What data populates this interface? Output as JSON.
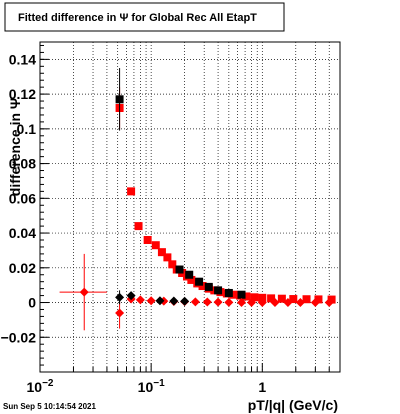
{
  "chart_data": {
    "type": "scatter",
    "title": "Fitted difference in  Ψ  for Global Rec All EtapT",
    "xlabel": "pT/|q| (GeV/c)",
    "ylabel": "difference in Ψ",
    "x_scale": "log",
    "xlim": [
      0.01,
      5
    ],
    "ylim": [
      -0.04,
      0.15
    ],
    "grid": true,
    "x_tick_labels": [
      {
        "value": 0.01,
        "base": "10",
        "exp": "−2"
      },
      {
        "value": 0.1,
        "base": "10",
        "exp": "−1"
      },
      {
        "value": 1,
        "base": "1",
        "exp": ""
      }
    ],
    "y_tick_labels": [
      "−0.02",
      "0",
      "0.02",
      "0.04",
      "0.06",
      "0.08",
      "0.1",
      "0.12",
      "0.14"
    ],
    "y_tick_values": [
      -0.02,
      0,
      0.02,
      0.04,
      0.06,
      0.08,
      0.1,
      0.12,
      0.14
    ],
    "series": [
      {
        "color": "#ff0000",
        "marker": "square",
        "points": [
          {
            "x": 0.052,
            "y": 0.112,
            "ey": 0.012
          },
          {
            "x": 0.066,
            "y": 0.064
          },
          {
            "x": 0.077,
            "y": 0.044
          },
          {
            "x": 0.093,
            "y": 0.036
          },
          {
            "x": 0.11,
            "y": 0.033
          },
          {
            "x": 0.125,
            "y": 0.029
          },
          {
            "x": 0.14,
            "y": 0.026
          },
          {
            "x": 0.155,
            "y": 0.022
          },
          {
            "x": 0.17,
            "y": 0.019
          },
          {
            "x": 0.19,
            "y": 0.017
          },
          {
            "x": 0.21,
            "y": 0.015
          },
          {
            "x": 0.23,
            "y": 0.013
          },
          {
            "x": 0.26,
            "y": 0.011
          },
          {
            "x": 0.29,
            "y": 0.0095
          },
          {
            "x": 0.33,
            "y": 0.008
          },
          {
            "x": 0.37,
            "y": 0.007
          },
          {
            "x": 0.42,
            "y": 0.006
          },
          {
            "x": 0.48,
            "y": 0.0052
          },
          {
            "x": 0.55,
            "y": 0.0045
          },
          {
            "x": 0.63,
            "y": 0.004
          },
          {
            "x": 0.72,
            "y": 0.0035
          },
          {
            "x": 0.85,
            "y": 0.003
          },
          {
            "x": 1.0,
            "y": 0.0027
          },
          {
            "x": 1.2,
            "y": 0.0024
          },
          {
            "x": 1.5,
            "y": 0.0022
          },
          {
            "x": 1.9,
            "y": 0.002
          },
          {
            "x": 2.5,
            "y": 0.0019
          },
          {
            "x": 3.2,
            "y": 0.0018
          },
          {
            "x": 4.2,
            "y": 0.0017
          }
        ]
      },
      {
        "color": "#000000",
        "marker": "square",
        "points": [
          {
            "x": 0.052,
            "y": 0.117,
            "ey": 0.018
          },
          {
            "x": 0.18,
            "y": 0.019
          },
          {
            "x": 0.22,
            "y": 0.016
          },
          {
            "x": 0.27,
            "y": 0.012
          },
          {
            "x": 0.33,
            "y": 0.009
          },
          {
            "x": 0.4,
            "y": 0.007
          },
          {
            "x": 0.5,
            "y": 0.0055
          },
          {
            "x": 0.65,
            "y": 0.0045
          }
        ]
      },
      {
        "color": "#ff0000",
        "marker": "diamond",
        "points": [
          {
            "x": 0.025,
            "y": 0.006,
            "ey": 0.022,
            "ex_lo": 0.015,
            "ex_hi": 0.04
          },
          {
            "x": 0.052,
            "y": -0.006,
            "ey": 0.009
          },
          {
            "x": 0.066,
            "y": 0.002
          },
          {
            "x": 0.08,
            "y": 0.0015
          },
          {
            "x": 0.1,
            "y": 0.001
          },
          {
            "x": 0.13,
            "y": 0.0008
          },
          {
            "x": 0.16,
            "y": 0.0006
          },
          {
            "x": 0.2,
            "y": 0.0005
          },
          {
            "x": 0.25,
            "y": 0.0004
          },
          {
            "x": 0.32,
            "y": 0.0003
          },
          {
            "x": 0.4,
            "y": 0.0002
          },
          {
            "x": 0.5,
            "y": 0.0001
          },
          {
            "x": 0.65,
            "y": 0.0
          },
          {
            "x": 0.8,
            "y": 0.0
          },
          {
            "x": 1.0,
            "y": 0.0
          },
          {
            "x": 1.3,
            "y": 0.0
          },
          {
            "x": 1.7,
            "y": 0.0
          },
          {
            "x": 2.2,
            "y": 0.0
          },
          {
            "x": 3.0,
            "y": 0.0
          },
          {
            "x": 4.0,
            "y": 0.0
          }
        ]
      },
      {
        "color": "#000000",
        "marker": "diamond",
        "points": [
          {
            "x": 0.052,
            "y": 0.003,
            "ey": 0.004
          },
          {
            "x": 0.066,
            "y": 0.004
          },
          {
            "x": 0.12,
            "y": 0.001
          },
          {
            "x": 0.16,
            "y": 0.0009
          },
          {
            "x": 0.2,
            "y": 0.0007
          }
        ]
      }
    ]
  },
  "footer": {
    "timestamp": "Sun Sep  5 10:14:54 2021"
  }
}
